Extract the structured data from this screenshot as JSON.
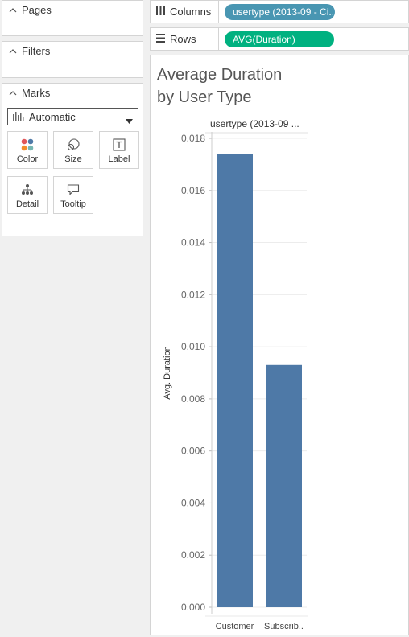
{
  "cards": {
    "pages": "Pages",
    "filters": "Filters",
    "marks": "Marks"
  },
  "marks": {
    "type": "Automatic",
    "buttons": [
      "Color",
      "Size",
      "Label",
      "Detail",
      "Tooltip"
    ]
  },
  "shelves": {
    "columns_label": "Columns",
    "columns_pill": "usertype (2013-09 - Ci...",
    "rows_label": "Rows",
    "rows_pill": "AVG(Duration)"
  },
  "colors": {
    "dimension_pill": "#4996b2",
    "measure_pill": "#00b180",
    "bar": "#4e79a7"
  },
  "view": {
    "title_line1": "Average Duration",
    "title_line2": "by User Type"
  },
  "chart_data": {
    "type": "bar",
    "column_header": "usertype (2013-09 ...",
    "categories": [
      "Customer",
      "Subscrib.."
    ],
    "values": [
      0.0174,
      0.0093
    ],
    "ylabel": "Avg. Duration",
    "yticks": [
      "0.000",
      "0.002",
      "0.004",
      "0.006",
      "0.008",
      "0.010",
      "0.012",
      "0.014",
      "0.016",
      "0.018"
    ],
    "ylim": [
      0,
      0.018
    ],
    "grid": true
  }
}
